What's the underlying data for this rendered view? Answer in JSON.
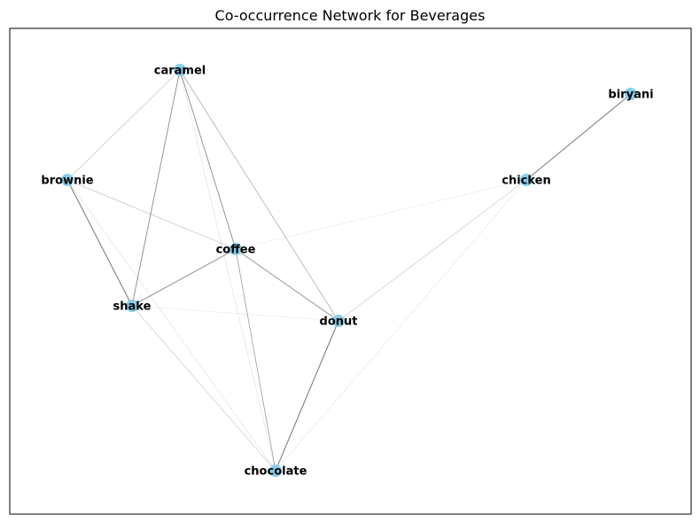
{
  "title": "Co-occurrence Network for Beverages",
  "node_color": "#87ceeb",
  "edge_color": "#000000",
  "nodes": [
    {
      "id": "caramel",
      "label": "caramel"
    },
    {
      "id": "biryani",
      "label": "biryani"
    },
    {
      "id": "brownie",
      "label": "brownie"
    },
    {
      "id": "chicken",
      "label": "chicken"
    },
    {
      "id": "coffee",
      "label": "coffee"
    },
    {
      "id": "shake",
      "label": "shake"
    },
    {
      "id": "donut",
      "label": "donut"
    },
    {
      "id": "chocolate",
      "label": "chocolate"
    }
  ],
  "edges": [
    {
      "source": "biryani",
      "target": "chicken",
      "weight": 0.5
    },
    {
      "source": "donut",
      "target": "chocolate",
      "weight": 0.5
    },
    {
      "source": "brownie",
      "target": "shake",
      "weight": 0.5
    },
    {
      "source": "caramel",
      "target": "shake",
      "weight": 0.42
    },
    {
      "source": "caramel",
      "target": "coffee",
      "weight": 0.42
    },
    {
      "source": "shake",
      "target": "coffee",
      "weight": 0.42
    },
    {
      "source": "coffee",
      "target": "donut",
      "weight": 0.42
    },
    {
      "source": "coffee",
      "target": "chocolate",
      "weight": 0.35
    },
    {
      "source": "caramel",
      "target": "donut",
      "weight": 0.3
    },
    {
      "source": "caramel",
      "target": "brownie",
      "weight": 0.22
    },
    {
      "source": "brownie",
      "target": "coffee",
      "weight": 0.22
    },
    {
      "source": "chicken",
      "target": "donut",
      "weight": 0.2
    },
    {
      "source": "shake",
      "target": "chocolate",
      "weight": 0.2
    },
    {
      "source": "caramel",
      "target": "chocolate",
      "weight": 0.12
    },
    {
      "source": "brownie",
      "target": "chocolate",
      "weight": 0.12
    },
    {
      "source": "shake",
      "target": "donut",
      "weight": 0.1
    },
    {
      "source": "coffee",
      "target": "chicken",
      "weight": 0.1
    },
    {
      "source": "chicken",
      "target": "chocolate",
      "weight": 0.1
    }
  ]
}
